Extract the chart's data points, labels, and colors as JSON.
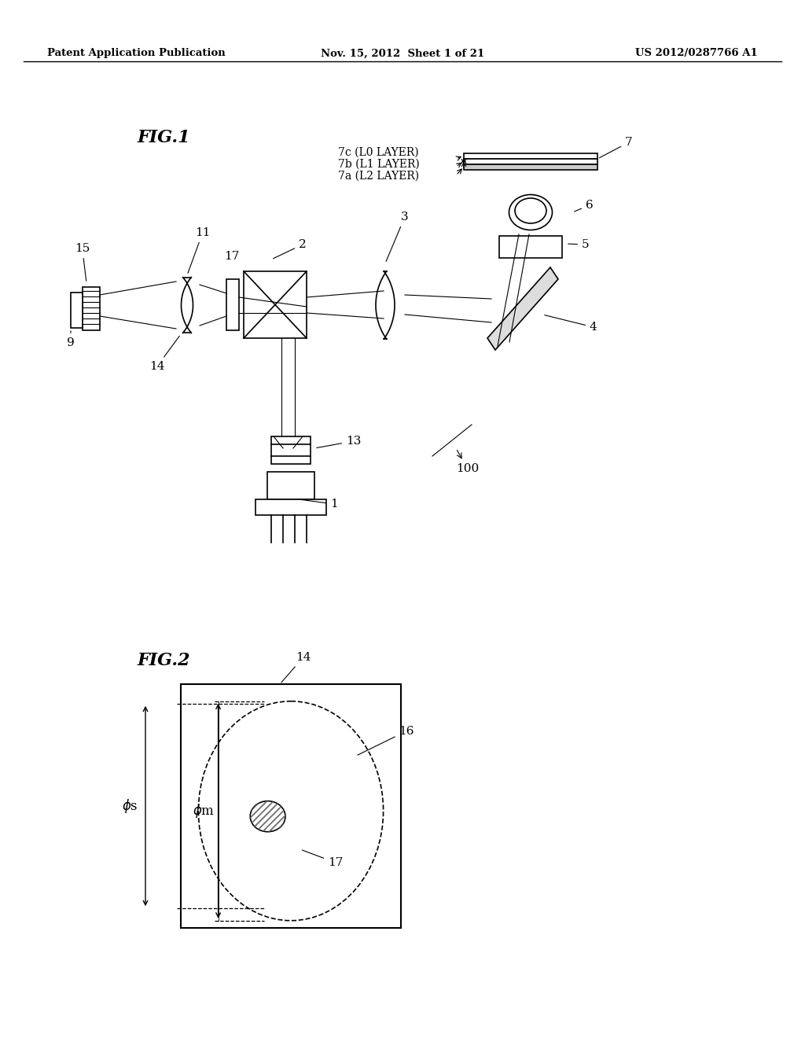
{
  "bg_color": "#ffffff",
  "header_left": "Patent Application Publication",
  "header_mid": "Nov. 15, 2012  Sheet 1 of 21",
  "header_right": "US 2012/0287766 A1",
  "fig1_label": "FIG.1",
  "fig2_label": "FIG.2",
  "fig1_number": "100",
  "line_color": "#000000",
  "gray_color": "#888888",
  "light_gray": "#cccccc",
  "hatch_color": "#666666"
}
